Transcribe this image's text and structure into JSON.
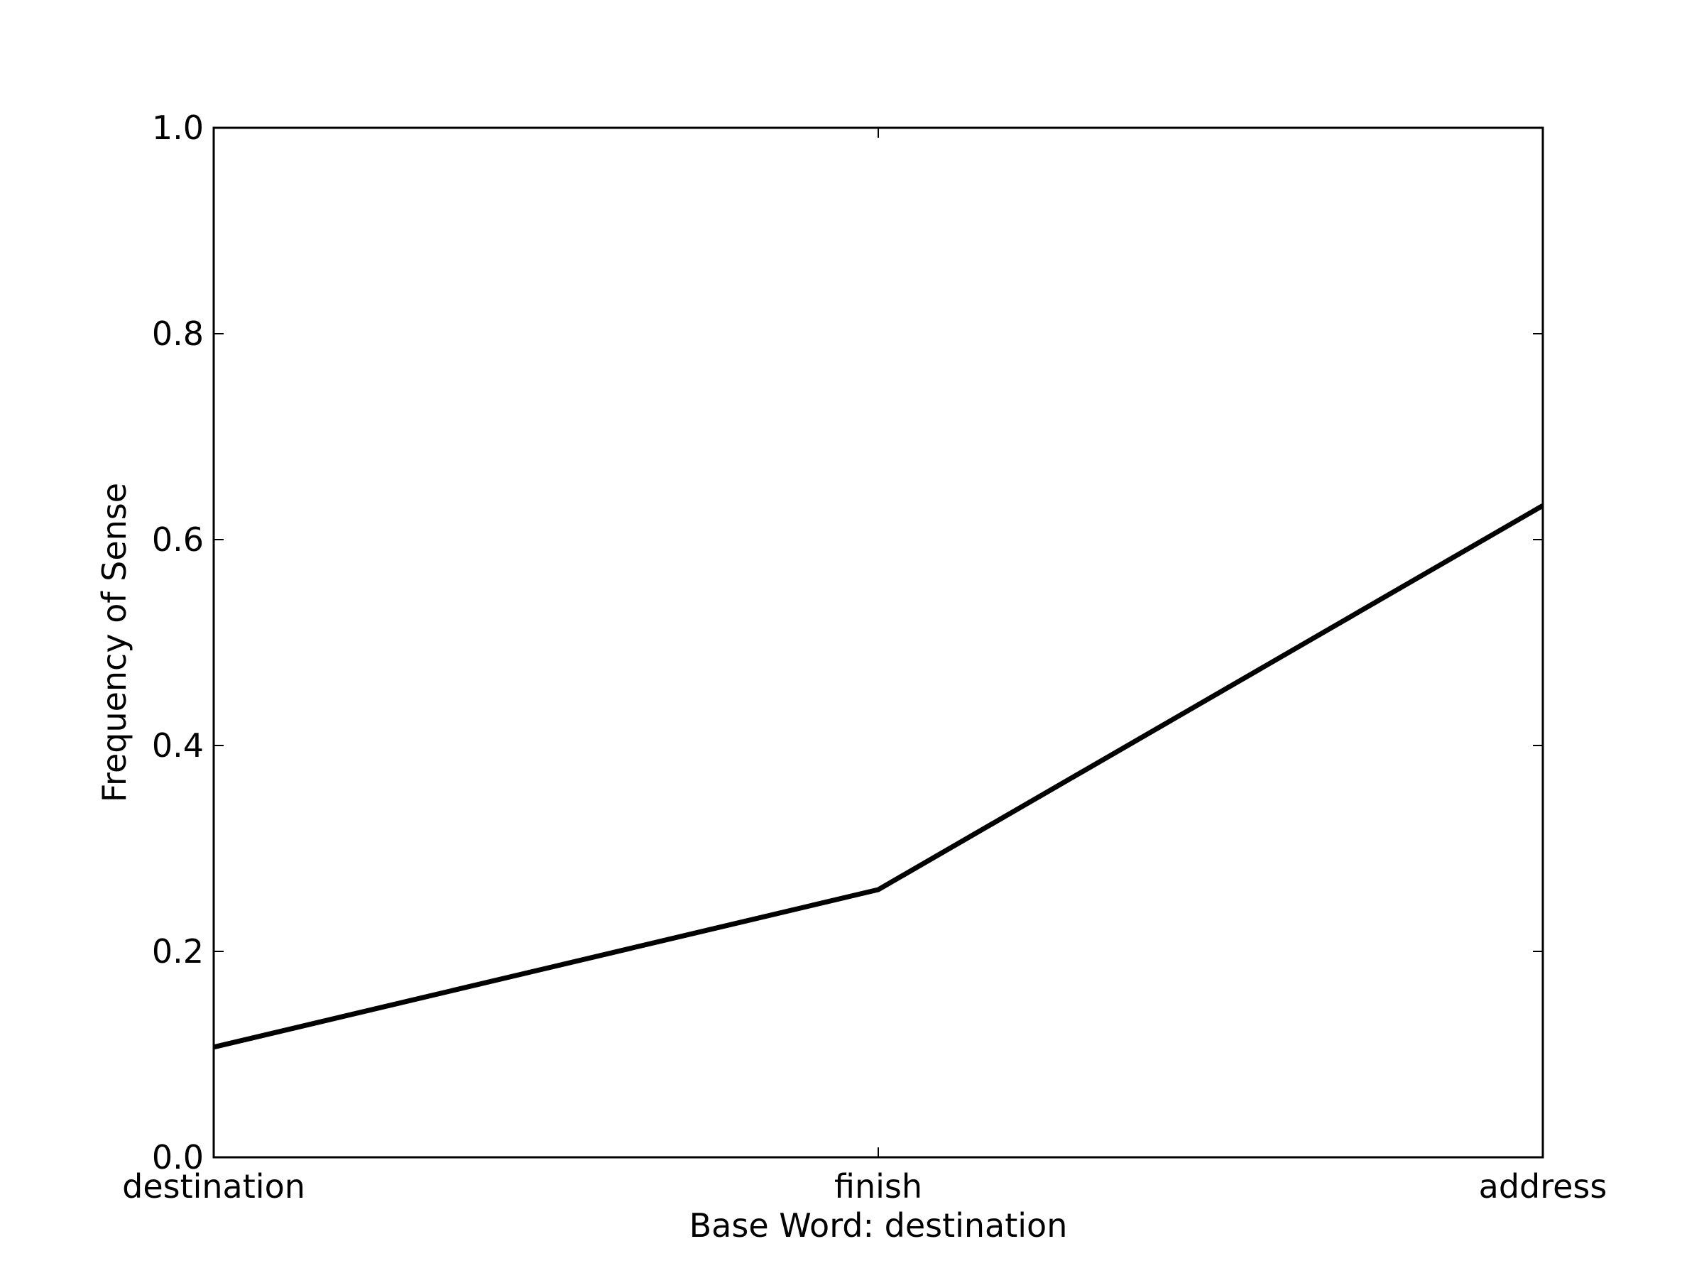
{
  "chart_data": {
    "type": "line",
    "title": "",
    "xlabel": "Base Word: destination",
    "ylabel": "Frequency of Sense",
    "categories": [
      "destination",
      "finish",
      "address"
    ],
    "series": [
      {
        "values": [
          0.107,
          0.26,
          0.633
        ]
      }
    ],
    "ylim": [
      0.0,
      1.0
    ],
    "yticks": [
      "0.0",
      "0.2",
      "0.4",
      "0.6",
      "0.8",
      "1.0"
    ],
    "grid": false,
    "line_color": "#000000"
  }
}
